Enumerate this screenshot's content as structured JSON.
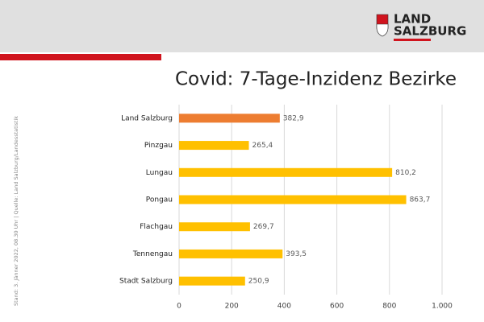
{
  "logo": {
    "line1": "LAND",
    "line2": "SALZBURG"
  },
  "side_note": "Stand: 3. Jänner 2022, 08.30 Uhr | Quelle: Land Salzburg/Landesstatistik",
  "chart_data": {
    "type": "bar",
    "orientation": "horizontal",
    "title": "Covid: 7-Tage-Inzidenz Bezirke",
    "categories": [
      "Land Salzburg",
      "Pinzgau",
      "Lungau",
      "Pongau",
      "Flachgau",
      "Tennengau",
      "Stadt Salzburg"
    ],
    "values": [
      382.9,
      265.4,
      810.2,
      863.7,
      269.7,
      393.5,
      250.9
    ],
    "value_labels": [
      "382,9",
      "265,4",
      "810,2",
      "863,7",
      "269,7",
      "393,5",
      "250,9"
    ],
    "colors": [
      "#ed7d31",
      "#ffc000",
      "#ffc000",
      "#ffc000",
      "#ffc000",
      "#ffc000",
      "#ffc000"
    ],
    "xlim": [
      0,
      1000
    ],
    "xticks": [
      0,
      200,
      400,
      600,
      800,
      {
        "value": 1000,
        "label": "1.000"
      }
    ],
    "grid": true
  }
}
